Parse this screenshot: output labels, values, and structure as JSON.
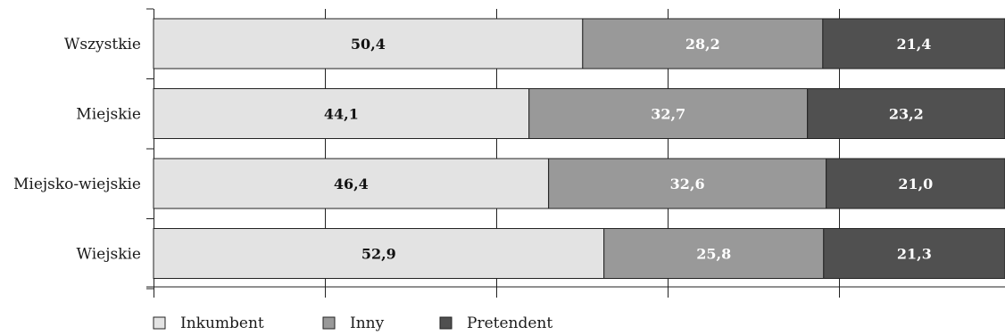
{
  "chart_data": {
    "type": "bar",
    "orientation": "horizontal",
    "stacked": true,
    "categories": [
      "Wszystkie",
      "Miejskie",
      "Miejsko-wiejskie",
      "Wiejskie"
    ],
    "series": [
      {
        "name": "Inkumbent",
        "values": [
          50.4,
          44.1,
          46.4,
          52.9
        ],
        "labels": [
          "50,4",
          "44,1",
          "46,4",
          "52,9"
        ],
        "color": "#e3e3e3",
        "label_color": "#111111"
      },
      {
        "name": "Inny",
        "values": [
          28.2,
          32.7,
          32.6,
          25.8
        ],
        "labels": [
          "28,2",
          "32,7",
          "32,6",
          "25,8"
        ],
        "color": "#999999",
        "label_color": "#ffffff"
      },
      {
        "name": "Pretendent",
        "values": [
          21.4,
          23.2,
          21.0,
          21.3
        ],
        "labels": [
          "21,4",
          "23,2",
          "21,0",
          "21,3"
        ],
        "color": "#505050",
        "label_color": "#ffffff"
      }
    ],
    "xlim": [
      0,
      100
    ],
    "grid": true,
    "legend": "bottom-left"
  }
}
